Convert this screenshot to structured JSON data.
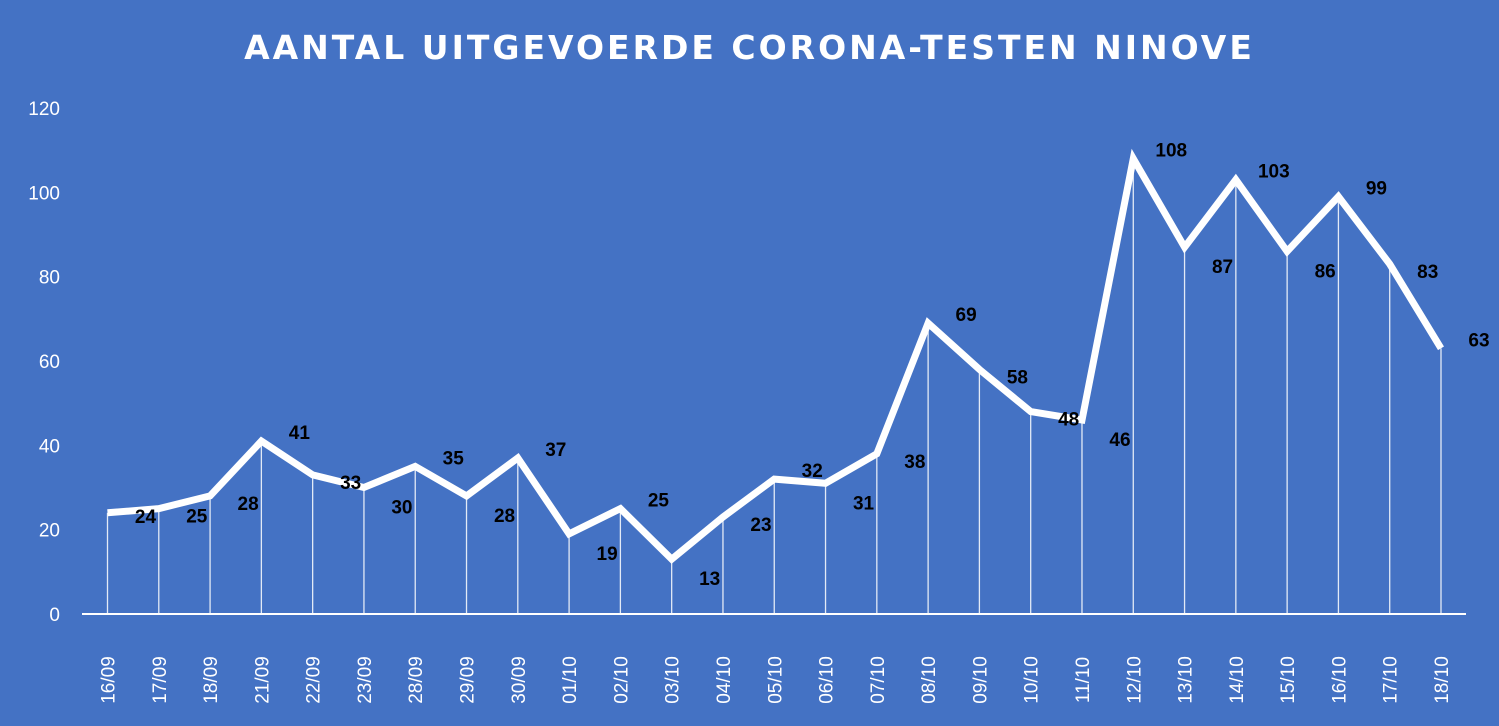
{
  "chart_data": {
    "type": "line",
    "title": "AANTAL UITGEVOERDE  CORONA-TESTEN NINOVE",
    "xlabel": "",
    "ylabel": "",
    "ylim": [
      0,
      120
    ],
    "yticks": [
      0,
      20,
      40,
      60,
      80,
      100,
      120
    ],
    "grid": false,
    "drop_lines": true,
    "line_color": "#ffffff",
    "background_color": "#4472c4",
    "label_color": "#000000",
    "categories": [
      "16/09",
      "17/09",
      "18/09",
      "21/09",
      "22/09",
      "23/09",
      "28/09",
      "29/09",
      "30/09",
      "01/10",
      "02/10",
      "03/10",
      "04/10",
      "05/10",
      "06/10",
      "07/10",
      "08/10",
      "09/10",
      "10/10",
      "11/10",
      "12/10",
      "13/10",
      "14/10",
      "15/10",
      "16/10",
      "17/10",
      "18/10"
    ],
    "series": [
      {
        "values": [
          24,
          25,
          28,
          41,
          33,
          30,
          35,
          28,
          37,
          19,
          25,
          13,
          23,
          32,
          31,
          38,
          69,
          58,
          48,
          46,
          108,
          87,
          103,
          86,
          99,
          83,
          63
        ],
        "labels": [
          "24",
          "25",
          "28",
          "41",
          "33",
          "30",
          "35",
          "28",
          "37",
          "19",
          "25",
          "13",
          "23",
          "32",
          "31",
          "38",
          "69",
          "58",
          "48",
          "46",
          "108",
          "87",
          "103",
          "86",
          "99",
          "83",
          "63"
        ]
      }
    ]
  }
}
